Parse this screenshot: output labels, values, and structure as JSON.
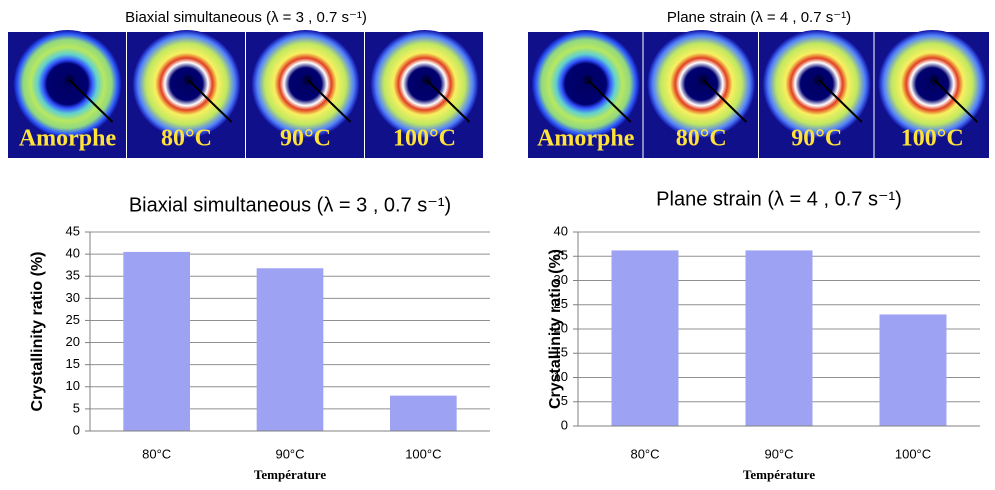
{
  "images": [
    {
      "title": "Biaxial simultaneous (λ = 3 , 0.7 s⁻¹)",
      "labels": [
        "Amorphe",
        "80°C",
        "90°C",
        "100°C"
      ]
    },
    {
      "title": "Plane strain (λ = 4 , 0.7 s⁻¹)",
      "labels": [
        "Amorphe",
        "80°C",
        "90°C",
        "100°C"
      ]
    }
  ],
  "chart_data": [
    {
      "type": "bar",
      "title": "Biaxial simultaneous (λ = 3 , 0.7 s⁻¹)",
      "x_label": "Température",
      "y_label": "Crystallinity ratio (%)",
      "categories": [
        "80°C",
        "90°C",
        "100°C"
      ],
      "values": [
        40.5,
        36.8,
        8
      ],
      "color": "#9da3f2",
      "ylim": [
        0,
        45
      ],
      "yticks": [
        0,
        5,
        10,
        15,
        20,
        25,
        30,
        35,
        40,
        45
      ],
      "grid": true
    },
    {
      "type": "bar",
      "title": "Plane strain (λ = 4 , 0.7 s⁻¹)",
      "x_label": "Température",
      "y_label": "Crystallinity ratio (%)",
      "categories": [
        "80°C",
        "90°C",
        "100°C"
      ],
      "values": [
        36.2,
        36.2,
        23
      ],
      "color": "#9da3f2",
      "ylim": [
        0,
        40
      ],
      "yticks": [
        0,
        5,
        10,
        15,
        20,
        25,
        30,
        35,
        40
      ],
      "grid": true
    }
  ]
}
